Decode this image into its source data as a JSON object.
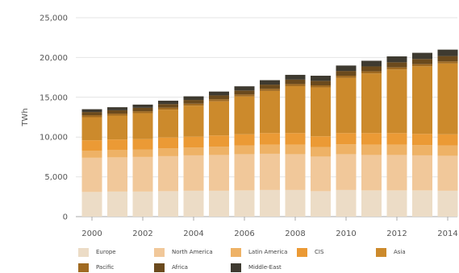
{
  "chart_data": {
    "type": "bar",
    "stacked": true,
    "xlabel": "",
    "ylabel": "TWh",
    "ylim": [
      0,
      25000
    ],
    "yticks": [
      0,
      5000,
      10000,
      15000,
      20000,
      25000
    ],
    "ytick_labels": [
      "0",
      "5,000",
      "10,000",
      "15,000",
      "20,000",
      "25,000"
    ],
    "categories": [
      "2000",
      "2001",
      "2002",
      "2003",
      "2004",
      "2005",
      "2006",
      "2007",
      "2008",
      "2009",
      "2010",
      "2011",
      "2012",
      "2013",
      "2014"
    ],
    "xtick_labels": [
      "2000",
      "2002",
      "2004",
      "2006",
      "2008",
      "2010",
      "2012",
      "2014"
    ],
    "grid": "horizontal",
    "legend_position": "bottom",
    "series": [
      {
        "name": "Europe",
        "color": "#ecdcc6",
        "values": [
          3100,
          3150,
          3150,
          3200,
          3250,
          3250,
          3300,
          3350,
          3350,
          3200,
          3350,
          3300,
          3300,
          3300,
          3250
        ]
      },
      {
        "name": "North America",
        "color": "#f1c89a",
        "values": [
          4300,
          4300,
          4350,
          4400,
          4450,
          4500,
          4550,
          4550,
          4500,
          4350,
          4500,
          4450,
          4450,
          4400,
          4400
        ]
      },
      {
        "name": "Latin America",
        "color": "#eeb266",
        "values": [
          900,
          950,
          950,
          1000,
          1000,
          1050,
          1100,
          1150,
          1200,
          1200,
          1250,
          1300,
          1300,
          1300,
          1300
        ]
      },
      {
        "name": "CIS",
        "color": "#eb9a35",
        "values": [
          1300,
          1300,
          1300,
          1350,
          1350,
          1400,
          1400,
          1450,
          1450,
          1350,
          1400,
          1450,
          1450,
          1400,
          1400
        ]
      },
      {
        "name": "Asia",
        "color": "#cc8a2c",
        "values": [
          2900,
          3000,
          3250,
          3500,
          3900,
          4300,
          4750,
          5300,
          5900,
          6150,
          6950,
          7500,
          8000,
          8500,
          8900
        ]
      },
      {
        "name": "Pacific",
        "color": "#a06a21",
        "values": [
          250,
          250,
          250,
          250,
          250,
          250,
          250,
          260,
          260,
          250,
          260,
          260,
          260,
          260,
          260
        ]
      },
      {
        "name": "Africa",
        "color": "#6b4a1d",
        "values": [
          400,
          420,
          430,
          450,
          470,
          490,
          510,
          530,
          560,
          570,
          600,
          620,
          640,
          650,
          670
        ]
      },
      {
        "name": "Middle-East",
        "color": "#3e3a30",
        "values": [
          350,
          380,
          400,
          420,
          450,
          480,
          520,
          560,
          600,
          640,
          680,
          710,
          740,
          780,
          810
        ]
      }
    ]
  },
  "legend": {
    "items": [
      {
        "label": "Europe"
      },
      {
        "label": "North America"
      },
      {
        "label": "Latin America"
      },
      {
        "label": "CIS"
      },
      {
        "label": "Asia"
      },
      {
        "label": "Pacific"
      },
      {
        "label": "Africa"
      },
      {
        "label": "Middle-East"
      }
    ]
  }
}
